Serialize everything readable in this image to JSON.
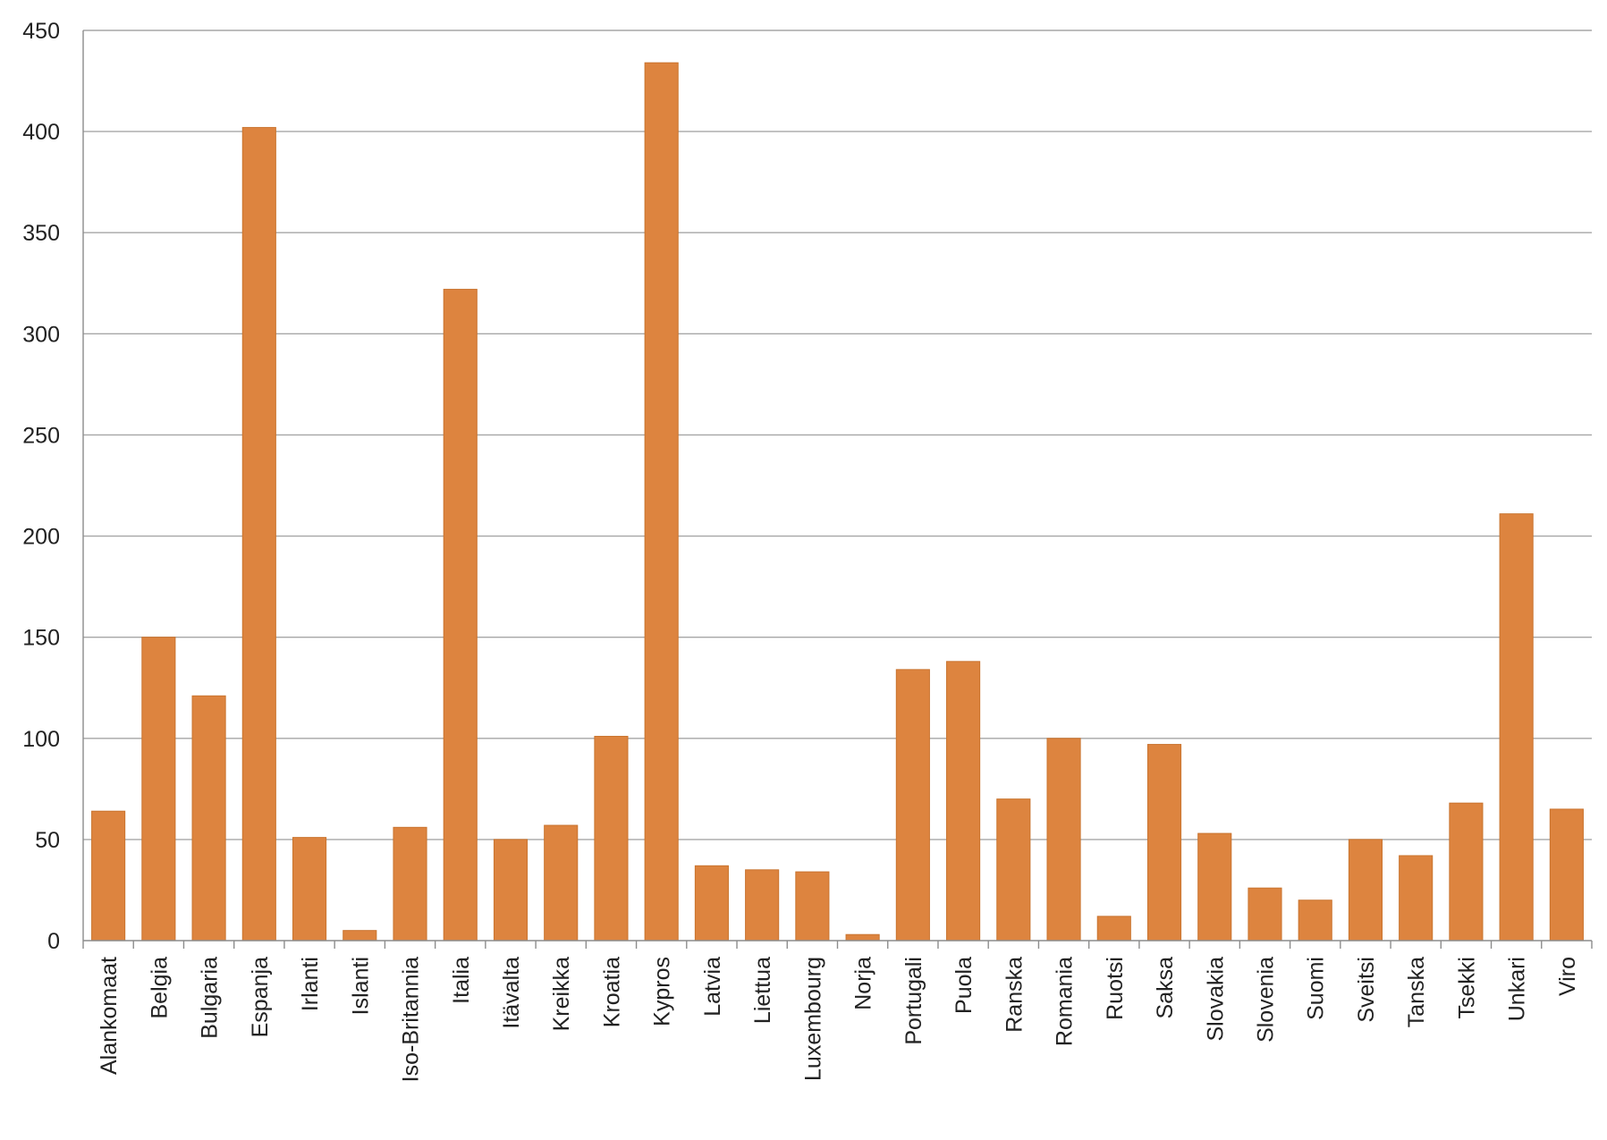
{
  "chart_data": {
    "type": "bar",
    "title": "",
    "xlabel": "",
    "ylabel": "",
    "ylim": [
      0,
      450
    ],
    "yticks": [
      0,
      50,
      100,
      150,
      200,
      250,
      300,
      350,
      400,
      450
    ],
    "grid": true,
    "legend": "none",
    "bar_color": "#dd843f",
    "categories": [
      "Alankomaat",
      "Belgia",
      "Bulgaria",
      "Espanja",
      "Irlanti",
      "Islanti",
      "Iso-Britannia",
      "Italia",
      "Itävalta",
      "Kreikka",
      "Kroatia",
      "Kypros",
      "Latvia",
      "Liettua",
      "Luxembourg",
      "Norja",
      "Portugali",
      "Puola",
      "Ranska",
      "Romania",
      "Ruotsi",
      "Saksa",
      "Slovakia",
      "Slovenia",
      "Suomi",
      "Sveitsi",
      "Tanska",
      "Tsekki",
      "Unkari",
      "Viro"
    ],
    "values": [
      64,
      150,
      121,
      402,
      51,
      5,
      56,
      322,
      50,
      57,
      101,
      434,
      37,
      35,
      34,
      3,
      134,
      138,
      70,
      100,
      12,
      97,
      53,
      26,
      20,
      50,
      42,
      68,
      211,
      65
    ]
  }
}
